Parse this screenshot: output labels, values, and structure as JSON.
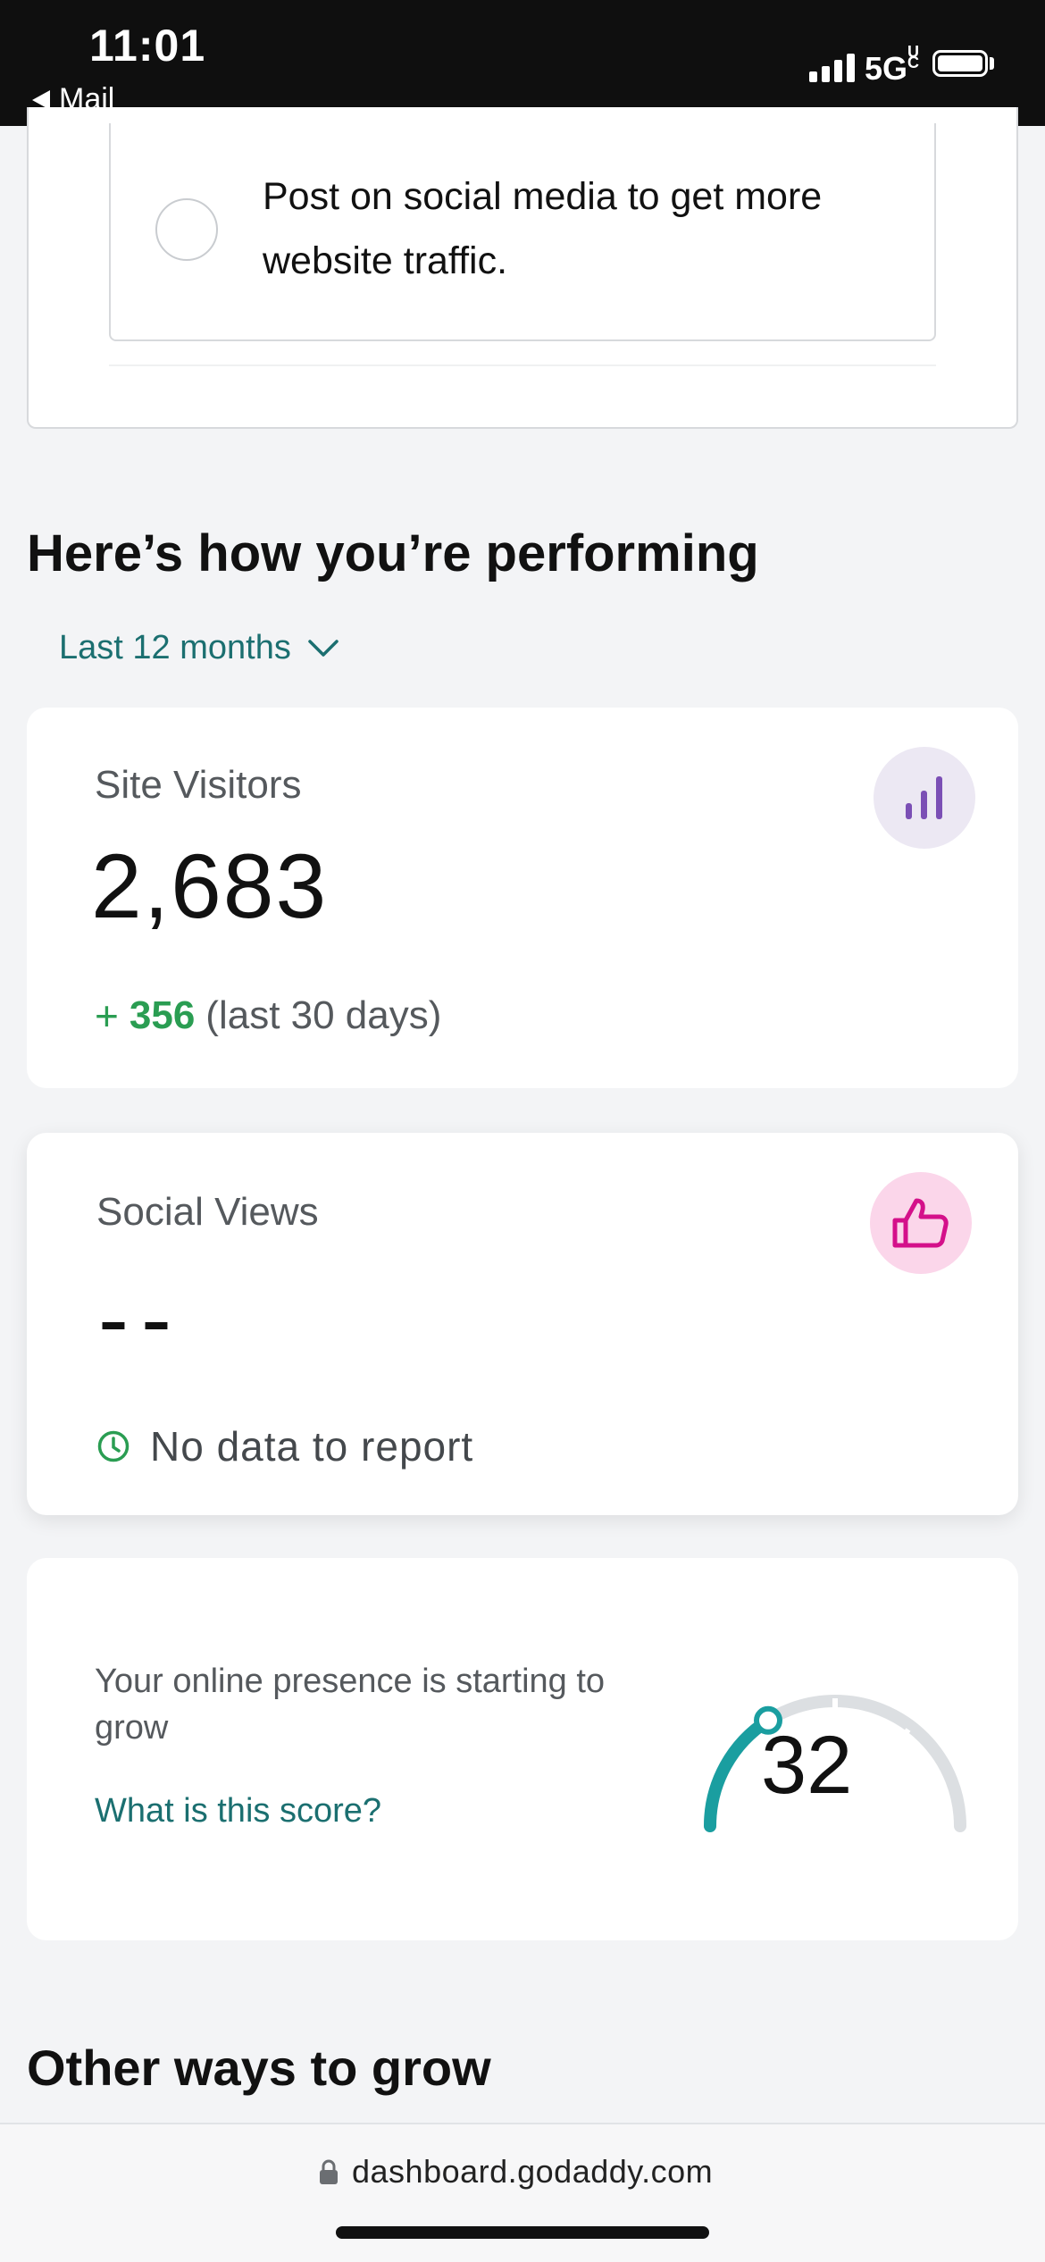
{
  "status_bar": {
    "time": "11:01",
    "back_label": "Mail",
    "network": "5G",
    "network_superscript": "UC",
    "signal_bars": 4,
    "battery_percent": 100
  },
  "task": {
    "text": "Post on social media to get more website traffic."
  },
  "performance": {
    "title": "Here’s how you’re performing",
    "range_label": "Last 12 months"
  },
  "site_visitors": {
    "label": "Site Visitors",
    "value": "2,683",
    "delta_sign": "+",
    "delta_value": "356",
    "delta_period": "(last 30 days)",
    "icon": "bar-chart-icon",
    "icon_bg": "#ece8f3",
    "icon_color": "#7b4fb5"
  },
  "social_views": {
    "label": "Social Views",
    "value": "--",
    "status": "No data to report",
    "icon": "thumbs-up-icon",
    "icon_bg": "#fbd6ea",
    "icon_color": "#d4108a"
  },
  "presence_score": {
    "description": "Your online presence is starting to grow",
    "link_label": "What is this score?",
    "score": "32",
    "score_fraction": 0.32,
    "gauge_color": "#1a9ea0",
    "gauge_track_color": "#dcdfe2"
  },
  "other_section": {
    "title": "Other ways to grow"
  },
  "browser": {
    "url": "dashboard.godaddy.com"
  }
}
